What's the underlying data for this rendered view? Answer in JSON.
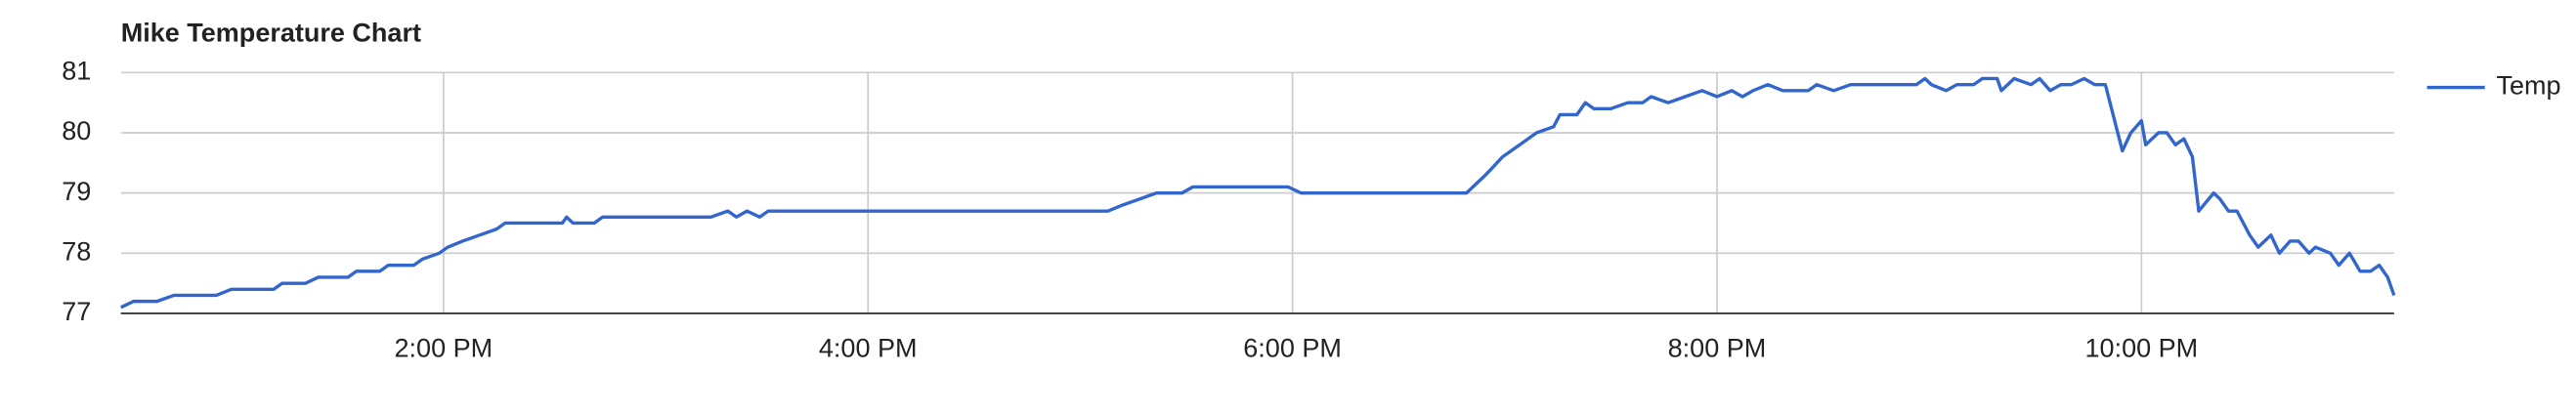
{
  "chart_data": {
    "type": "line",
    "title": "Mike Temperature Chart",
    "x": [
      12.48,
      12.54,
      12.65,
      12.73,
      12.93,
      13.0,
      13.2,
      13.24,
      13.35,
      13.41,
      13.55,
      13.59,
      13.7,
      13.74,
      13.86,
      13.9,
      13.98,
      14.02,
      14.09,
      14.17,
      14.25,
      14.29,
      14.56,
      14.58,
      14.61,
      14.71,
      14.75,
      15.26,
      15.34,
      15.38,
      15.43,
      15.49,
      15.53,
      17.13,
      17.2,
      17.28,
      17.36,
      17.48,
      17.53,
      17.98,
      18.04,
      18.82,
      18.91,
      18.99,
      19.07,
      19.15,
      19.23,
      19.26,
      19.34,
      19.38,
      19.42,
      19.5,
      19.58,
      19.65,
      19.69,
      19.77,
      19.85,
      19.93,
      20.0,
      20.07,
      20.12,
      20.17,
      20.24,
      20.31,
      20.43,
      20.47,
      20.55,
      20.63,
      20.94,
      20.98,
      21.01,
      21.08,
      21.13,
      21.21,
      21.25,
      21.32,
      21.34,
      21.4,
      21.48,
      21.52,
      21.57,
      21.62,
      21.67,
      21.73,
      21.78,
      21.83,
      21.91,
      21.95,
      22.0,
      22.02,
      22.08,
      22.12,
      22.16,
      22.2,
      22.24,
      22.27,
      22.34,
      22.37,
      22.41,
      22.45,
      22.51,
      22.55,
      22.61,
      22.65,
      22.7,
      22.74,
      22.79,
      22.82,
      22.89,
      22.93,
      22.98,
      23.03,
      23.08,
      23.12,
      23.16,
      23.19
    ],
    "series": [
      {
        "name": "Temp",
        "color": "#3366cc",
        "values": [
          77.1,
          77.2,
          77.2,
          77.3,
          77.3,
          77.4,
          77.4,
          77.5,
          77.5,
          77.6,
          77.6,
          77.7,
          77.7,
          77.8,
          77.8,
          77.9,
          78.0,
          78.1,
          78.2,
          78.3,
          78.4,
          78.5,
          78.5,
          78.6,
          78.5,
          78.5,
          78.6,
          78.6,
          78.7,
          78.6,
          78.7,
          78.6,
          78.7,
          78.7,
          78.8,
          78.9,
          79.0,
          79.0,
          79.1,
          79.1,
          79.0,
          79.0,
          79.3,
          79.6,
          79.8,
          80.0,
          80.1,
          80.3,
          80.3,
          80.5,
          80.4,
          80.4,
          80.5,
          80.5,
          80.6,
          80.5,
          80.6,
          80.7,
          80.6,
          80.7,
          80.6,
          80.7,
          80.8,
          80.7,
          80.7,
          80.8,
          80.7,
          80.8,
          80.8,
          80.9,
          80.8,
          80.7,
          80.8,
          80.8,
          80.9,
          80.9,
          80.7,
          80.9,
          80.8,
          80.9,
          80.7,
          80.8,
          80.8,
          80.9,
          80.8,
          80.8,
          79.7,
          80.0,
          80.2,
          79.8,
          80.0,
          80.0,
          79.8,
          79.9,
          79.6,
          78.7,
          79.0,
          78.9,
          78.7,
          78.7,
          78.3,
          78.1,
          78.3,
          78.0,
          78.2,
          78.2,
          78.0,
          78.1,
          78.0,
          77.8,
          78.0,
          77.7,
          77.7,
          77.8,
          77.6,
          77.3
        ]
      }
    ],
    "xlim": [
      12.48,
      23.19
    ],
    "xticks": [
      {
        "value": 14,
        "label": "2:00 PM"
      },
      {
        "value": 16,
        "label": "4:00 PM"
      },
      {
        "value": 18,
        "label": "6:00 PM"
      },
      {
        "value": 20,
        "label": "8:00 PM"
      },
      {
        "value": 22,
        "label": "10:00 PM"
      }
    ],
    "ylim": [
      77,
      81
    ],
    "yticks": [
      77,
      78,
      79,
      80,
      81
    ],
    "grid": true,
    "legend": "right"
  }
}
